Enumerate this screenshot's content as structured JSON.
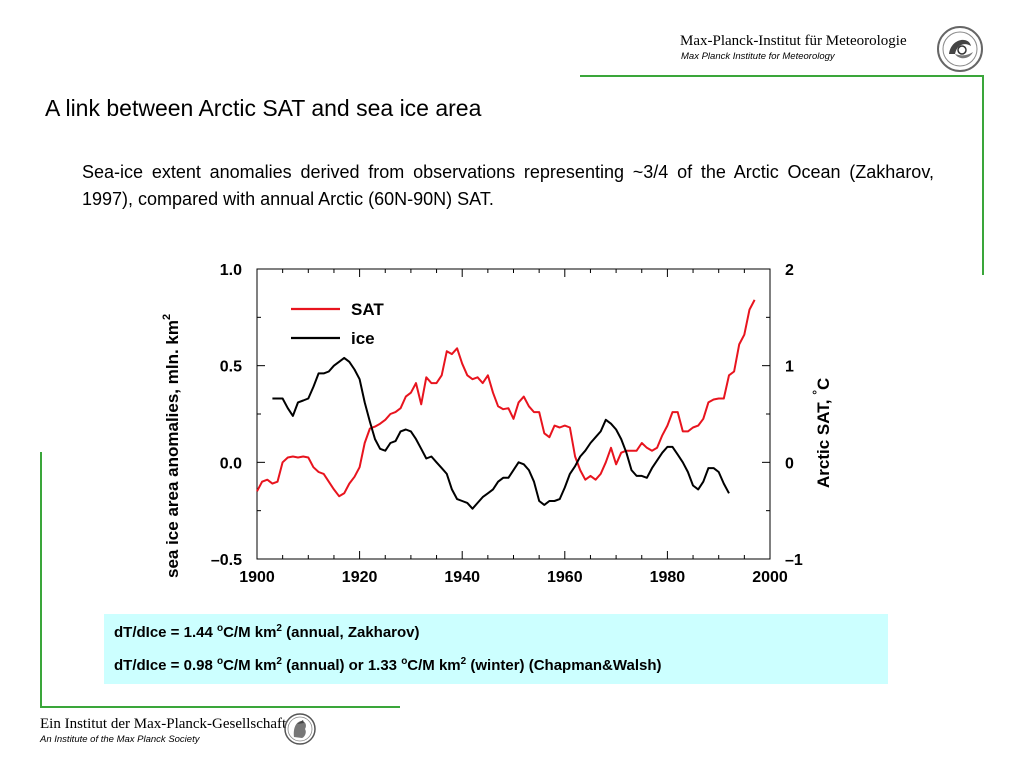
{
  "header": {
    "institute_de": "Max-Planck-Institut für Meteorologie",
    "institute_en": "Max Planck Institute for Meteorology"
  },
  "slide": {
    "title": "A link between Arctic SAT and sea ice area",
    "description": "Sea-ice extent anomalies derived from observations representing ~3/4 of the Arctic Ocean (Zakharov, 1997), compared with annual Arctic (60N-90N) SAT."
  },
  "stats": {
    "line1": {
      "prefix": "dT/dIce = 1.44 ",
      "sup1": "o",
      "mid": "C/M km",
      "sup2": "2",
      "suffix": " (annual, Zakharov)"
    },
    "line2": {
      "prefix": "dT/dIce = 0.98 ",
      "sup1": "o",
      "mid": "C/M km",
      "sup2": "2",
      "mid2": " (annual) or 1.33 ",
      "sup3": "o",
      "mid3": "C/M km",
      "sup4": "2",
      "suffix": " (winter) (Chapman&Walsh)"
    }
  },
  "footer": {
    "society_de": "Ein Institut der Max-Planck-Gesellschaft",
    "society_en": "An Institute of the Max Planck Society"
  },
  "colors": {
    "sat": "#e8141e",
    "ice": "#000000",
    "accent_green": "#3aa63a",
    "stats_bg": "#ccffff"
  },
  "icons": [
    "mpi-meteorology-logo-icon",
    "mpg-minerva-seal-icon"
  ],
  "chart_data": {
    "type": "line",
    "xlabel": "",
    "ylabel": "sea ice area anomalies, mln. km",
    "ylabel_sup": "2",
    "y2label": "Arctic SAT, ",
    "y2label_sup": "°",
    "y2label_unit": "C",
    "xlim": [
      1900,
      2000
    ],
    "ylim": [
      -0.5,
      1.0
    ],
    "y2lim": [
      -1,
      2
    ],
    "xticks": [
      1900,
      1920,
      1940,
      1960,
      1980,
      2000
    ],
    "xtick_labels": [
      "1900",
      "1920",
      "1940",
      "1960",
      "1980",
      "2000"
    ],
    "yticks": [
      -0.5,
      0.0,
      0.5,
      1.0
    ],
    "ytick_labels": [
      "–0.5",
      "0.0",
      "0.5",
      "1.0"
    ],
    "y2ticks": [
      -1,
      0,
      1,
      2
    ],
    "y2tick_labels": [
      "–1",
      "0",
      "1",
      "2"
    ],
    "grid": false,
    "legend": "top-left",
    "series": [
      {
        "name": "SAT",
        "axis": "right",
        "color": "#e8141e",
        "x": [
          1900,
          1901,
          1902,
          1903,
          1904,
          1905,
          1906,
          1907,
          1908,
          1909,
          1910,
          1911,
          1912,
          1913,
          1914,
          1915,
          1916,
          1917,
          1918,
          1919,
          1920,
          1921,
          1922,
          1923,
          1924,
          1925,
          1926,
          1927,
          1928,
          1929,
          1930,
          1931,
          1932,
          1933,
          1934,
          1935,
          1936,
          1937,
          1938,
          1939,
          1940,
          1941,
          1942,
          1943,
          1944,
          1945,
          1946,
          1947,
          1948,
          1949,
          1950,
          1951,
          1952,
          1953,
          1954,
          1955,
          1956,
          1957,
          1958,
          1959,
          1960,
          1961,
          1962,
          1963,
          1964,
          1965,
          1966,
          1967,
          1968,
          1969,
          1970,
          1971,
          1972,
          1973,
          1974,
          1975,
          1976,
          1977,
          1978,
          1979,
          1980,
          1981,
          1982,
          1983,
          1984,
          1985,
          1986,
          1987,
          1988,
          1989,
          1990,
          1991,
          1992,
          1993,
          1994,
          1995,
          1996,
          1997
        ],
        "values": [
          -0.3,
          -0.2,
          -0.18,
          -0.22,
          -0.2,
          0.0,
          0.05,
          0.06,
          0.05,
          0.06,
          0.05,
          -0.05,
          -0.1,
          -0.12,
          -0.2,
          -0.28,
          -0.35,
          -0.32,
          -0.22,
          -0.15,
          -0.05,
          0.2,
          0.35,
          0.37,
          0.4,
          0.44,
          0.5,
          0.52,
          0.56,
          0.68,
          0.72,
          0.82,
          0.6,
          0.88,
          0.82,
          0.82,
          0.9,
          1.15,
          1.12,
          1.18,
          1.02,
          0.9,
          0.86,
          0.88,
          0.82,
          0.9,
          0.72,
          0.58,
          0.55,
          0.56,
          0.45,
          0.62,
          0.68,
          0.58,
          0.52,
          0.52,
          0.3,
          0.26,
          0.38,
          0.36,
          0.38,
          0.36,
          0.06,
          -0.08,
          -0.18,
          -0.14,
          -0.18,
          -0.12,
          0.0,
          0.15,
          -0.02,
          0.1,
          0.12,
          0.12,
          0.12,
          0.2,
          0.15,
          0.12,
          0.15,
          0.28,
          0.38,
          0.52,
          0.52,
          0.32,
          0.32,
          0.36,
          0.38,
          0.45,
          0.62,
          0.65,
          0.66,
          0.66,
          0.9,
          0.94,
          1.22,
          1.32,
          1.58,
          1.68
        ]
      },
      {
        "name": "ice",
        "axis": "left",
        "color": "#000000",
        "x": [
          1903,
          1904,
          1905,
          1906,
          1907,
          1908,
          1909,
          1910,
          1911,
          1912,
          1913,
          1914,
          1915,
          1916,
          1917,
          1918,
          1919,
          1920,
          1921,
          1922,
          1923,
          1924,
          1925,
          1926,
          1927,
          1928,
          1929,
          1930,
          1931,
          1932,
          1933,
          1934,
          1935,
          1936,
          1937,
          1938,
          1939,
          1940,
          1941,
          1942,
          1943,
          1944,
          1945,
          1946,
          1947,
          1948,
          1949,
          1950,
          1951,
          1952,
          1953,
          1954,
          1955,
          1956,
          1957,
          1958,
          1959,
          1960,
          1961,
          1962,
          1963,
          1964,
          1965,
          1966,
          1967,
          1968,
          1969,
          1970,
          1971,
          1972,
          1973,
          1974,
          1975,
          1976,
          1977,
          1978,
          1979,
          1980,
          1981,
          1982,
          1983,
          1984,
          1985,
          1986,
          1987,
          1988,
          1989,
          1990,
          1991,
          1992
        ],
        "values": [
          0.33,
          0.33,
          0.33,
          0.28,
          0.24,
          0.31,
          0.32,
          0.33,
          0.39,
          0.46,
          0.46,
          0.47,
          0.5,
          0.52,
          0.54,
          0.52,
          0.48,
          0.43,
          0.31,
          0.21,
          0.12,
          0.07,
          0.06,
          0.1,
          0.11,
          0.16,
          0.17,
          0.16,
          0.12,
          0.07,
          0.02,
          0.03,
          0.0,
          -0.03,
          -0.06,
          -0.14,
          -0.19,
          -0.2,
          -0.21,
          -0.24,
          -0.21,
          -0.18,
          -0.16,
          -0.14,
          -0.1,
          -0.08,
          -0.08,
          -0.04,
          0.0,
          -0.01,
          -0.04,
          -0.1,
          -0.2,
          -0.22,
          -0.2,
          -0.2,
          -0.19,
          -0.13,
          -0.06,
          -0.02,
          0.03,
          0.06,
          0.1,
          0.13,
          0.16,
          0.22,
          0.2,
          0.17,
          0.12,
          0.05,
          -0.04,
          -0.07,
          -0.07,
          -0.08,
          -0.03,
          0.01,
          0.05,
          0.08,
          0.08,
          0.04,
          0.0,
          -0.05,
          -0.12,
          -0.14,
          -0.1,
          -0.03,
          -0.03,
          -0.05,
          -0.11,
          -0.16
        ]
      }
    ]
  }
}
